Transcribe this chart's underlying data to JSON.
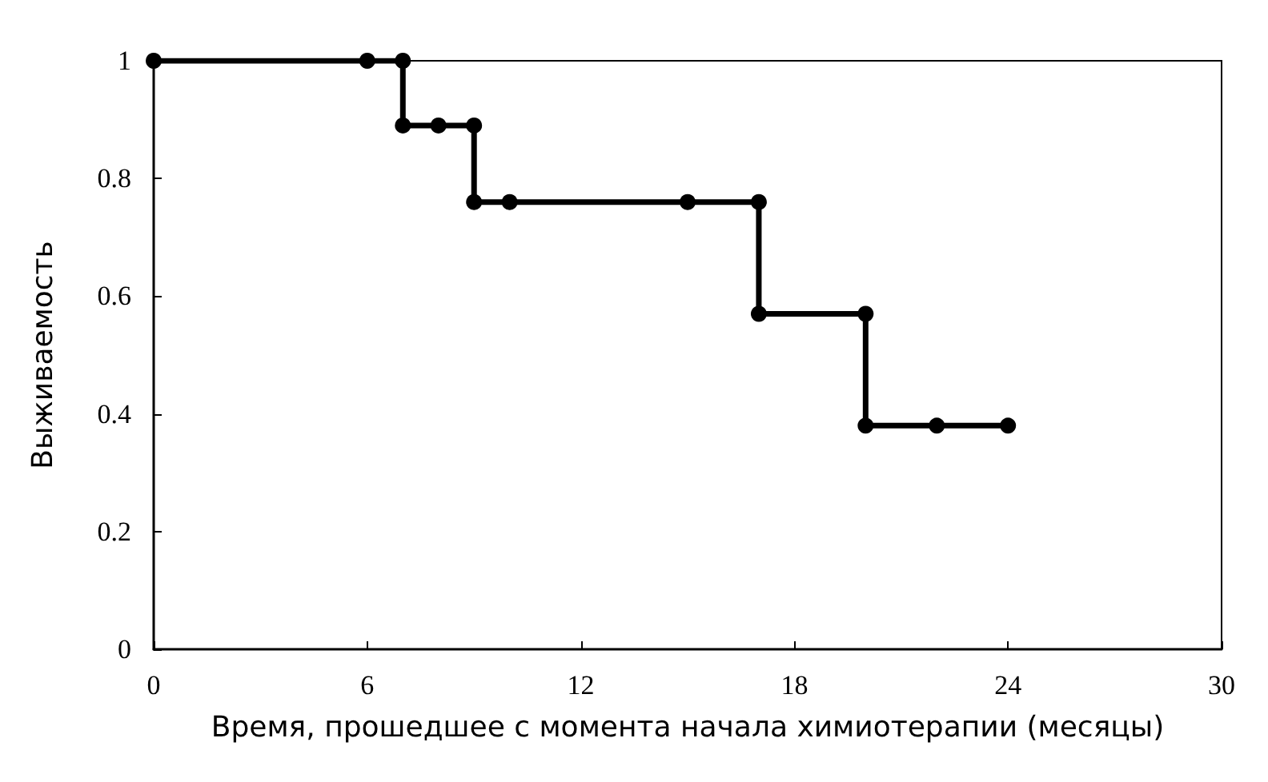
{
  "chart_data": {
    "type": "line",
    "xlabel": "Время, прошедшее с момента начала химиотерапии (месяцы)",
    "ylabel": "Выживаемость",
    "x": [
      0,
      6,
      7,
      7,
      8,
      9,
      9,
      10,
      15,
      17,
      17,
      20,
      20,
      22,
      24
    ],
    "series": [
      {
        "color": "#000000",
        "values": [
          1,
          1,
          1,
          0.89,
          0.89,
          0.89,
          0.76,
          0.76,
          0.76,
          0.76,
          0.57,
          0.57,
          0.38,
          0.38,
          0.38
        ]
      }
    ],
    "xlim": [
      0,
      30
    ],
    "xticks": [
      0,
      6,
      12,
      18,
      24,
      30
    ],
    "ylim": [
      0,
      1
    ],
    "yticks": [
      0,
      0.2,
      0.4,
      0.6,
      0.8,
      1
    ],
    "grid": false,
    "marker": "circle",
    "line_style": "solid"
  }
}
